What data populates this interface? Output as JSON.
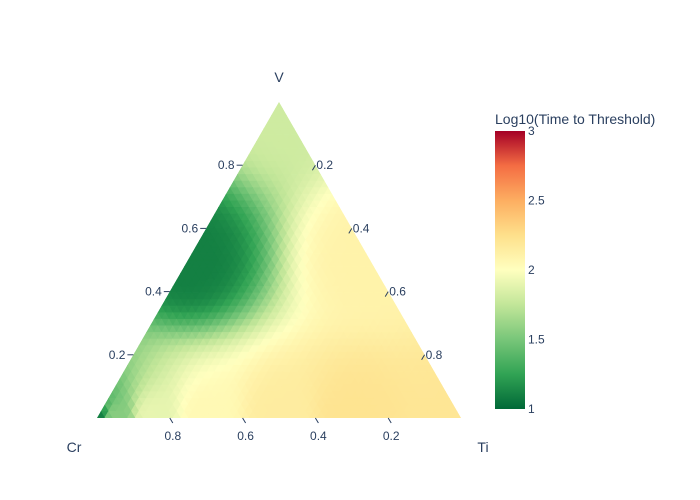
{
  "chart_data": {
    "type": "heatmap",
    "subtype": "ternary-contour",
    "axes": {
      "a": {
        "title": "V",
        "position": "top-vertex",
        "ticks": [
          0.2,
          0.4,
          0.6,
          0.8
        ],
        "tick_labels": [
          "0.2",
          "0.4",
          "0.6",
          "0.8"
        ]
      },
      "b": {
        "title": "Cr",
        "position": "bottom-left-vertex",
        "ticks": [
          0.8,
          0.6,
          0.4,
          0.2
        ],
        "tick_labels": [
          "0.8",
          "0.6",
          "0.4",
          "0.2"
        ]
      },
      "c": {
        "title": "Ti",
        "position": "bottom-right-vertex",
        "ticks": [
          0.2,
          0.4,
          0.6,
          0.8
        ],
        "tick_labels": [
          "0.2",
          "0.4",
          "0.6",
          "0.8"
        ]
      }
    },
    "colorbar": {
      "title": "Log10(Time to Threshold)",
      "range": [
        1,
        3
      ],
      "ticks": [
        1,
        1.5,
        2,
        2.5,
        3
      ],
      "tick_labels": [
        "1",
        "1.5",
        "2",
        "2.5",
        "3"
      ],
      "colorscale": "RdYlGn-reversed",
      "stops": [
        {
          "value": 1.0,
          "color": "#006837"
        },
        {
          "value": 1.25,
          "color": "#31a354"
        },
        {
          "value": 1.5,
          "color": "#78c679"
        },
        {
          "value": 1.75,
          "color": "#c2e699"
        },
        {
          "value": 2.0,
          "color": "#ffffbf"
        },
        {
          "value": 2.25,
          "color": "#fee08b"
        },
        {
          "value": 2.5,
          "color": "#fdae61"
        },
        {
          "value": 2.75,
          "color": "#f46d43"
        },
        {
          "value": 3.0,
          "color": "#a50026"
        }
      ]
    },
    "field_samples": [
      {
        "V": 0.0,
        "Cr": 1.0,
        "Ti": 0.0,
        "z": 1.1
      },
      {
        "V": 0.0,
        "Cr": 0.95,
        "Ti": 0.05,
        "z": 1.55
      },
      {
        "V": 0.0,
        "Cr": 0.85,
        "Ti": 0.15,
        "z": 1.9
      },
      {
        "V": 0.0,
        "Cr": 0.7,
        "Ti": 0.3,
        "z": 2.05
      },
      {
        "V": 0.0,
        "Cr": 0.5,
        "Ti": 0.5,
        "z": 2.15
      },
      {
        "V": 0.0,
        "Cr": 0.3,
        "Ti": 0.7,
        "z": 2.22
      },
      {
        "V": 0.0,
        "Cr": 0.0,
        "Ti": 1.0,
        "z": 2.2
      },
      {
        "V": 1.0,
        "Cr": 0.0,
        "Ti": 0.0,
        "z": 1.8
      },
      {
        "V": 0.5,
        "Cr": 0.0,
        "Ti": 0.5,
        "z": 2.1
      },
      {
        "V": 0.5,
        "Cr": 0.5,
        "Ti": 0.0,
        "z": 1.1
      }
    ]
  }
}
